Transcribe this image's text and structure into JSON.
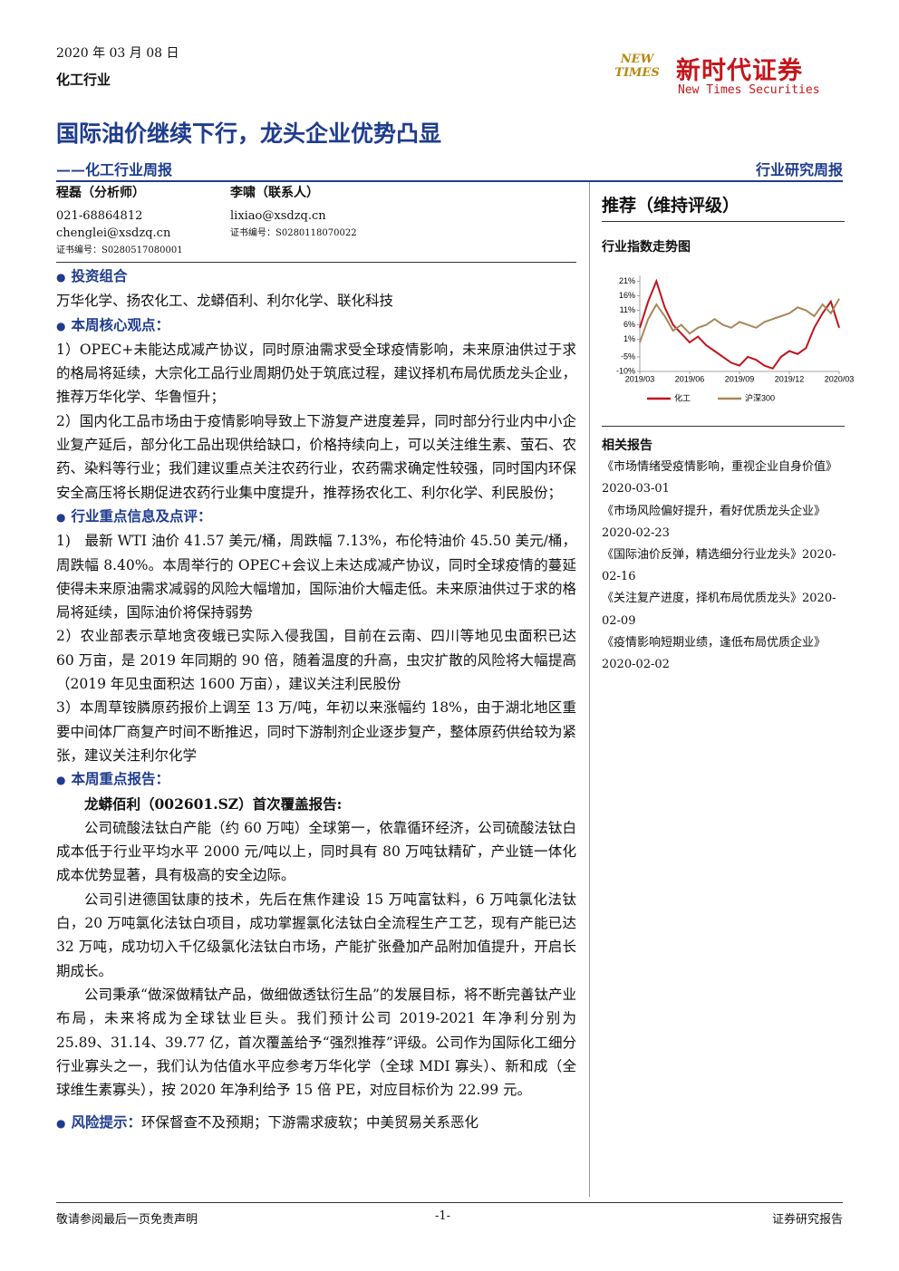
{
  "header": {
    "date": "2020 年 03 月 08 日",
    "industry": "化工行业",
    "logo_mark": [
      "NEW",
      "TIMES"
    ],
    "logo_cn": "新时代证券",
    "logo_en": "New Times Securities",
    "title": "国际油价继续下行，龙头企业优势凸显",
    "subtitle": "——化工行业周报",
    "report_type": "行业研究周报"
  },
  "analysts": [
    {
      "name": "程磊（分析师）",
      "phone": "021-68864812",
      "email": "chenglei@xsdzq.cn",
      "cert": "证书编号：S0280517080001"
    },
    {
      "name": "李啸（联系人）",
      "email": "lixiao@xsdzq.cn",
      "cert": "证书编号：S0280118070022"
    }
  ],
  "rating": "推荐（维持评级）",
  "chart_data": {
    "type": "line",
    "title": "行业指数走势图",
    "categories": [
      "2019/03",
      null,
      null,
      null,
      null,
      null,
      "2019/06",
      null,
      null,
      null,
      null,
      null,
      "2019/09",
      null,
      null,
      null,
      null,
      null,
      "2019/12",
      null,
      null,
      null,
      null,
      null,
      "2020/03"
    ],
    "series": [
      {
        "name": "化工",
        "color": "#c0141c",
        "values": [
          5,
          14,
          21,
          12,
          6,
          3,
          0,
          2,
          -1,
          -3,
          -5,
          -7,
          -8,
          -5,
          -6,
          -8,
          -9,
          -5,
          -3,
          -4,
          -2,
          5,
          10,
          14,
          5
        ]
      },
      {
        "name": "沪深300",
        "color": "#a8875a",
        "values": [
          0,
          8,
          13,
          9,
          4,
          6,
          3,
          5,
          6,
          8,
          6,
          5,
          7,
          6,
          5,
          7,
          8,
          9,
          10,
          12,
          11,
          9,
          13,
          10,
          15
        ]
      }
    ],
    "ylim": [
      -10,
      23
    ],
    "yticks": [
      {
        "value": 21,
        "label": "21%"
      },
      {
        "value": 16,
        "label": "16%"
      },
      {
        "value": 11,
        "label": "11%"
      },
      {
        "value": 6,
        "label": "6%"
      },
      {
        "value": 1,
        "label": "1%"
      },
      {
        "value": -5,
        "label": "-5%"
      },
      {
        "value": -10,
        "label": "-10%"
      }
    ]
  },
  "related": {
    "title": "相关报告",
    "items": [
      "《市场情绪受疫情影响，重视企业自身价值》2020-03-01",
      "《市场风险偏好提升，看好优质龙头企业》2020-02-23",
      "《国际油价反弹，精选细分行业龙头》2020-02-16",
      "《关注复产进度，择机布局优质龙头》2020-02-09",
      "《疫情影响短期业绩，逢低布局优质企业》2020-02-02"
    ]
  },
  "body": {
    "portfolio": {
      "heading": "投资组合",
      "text": "万华化学、扬农化工、龙蟒佰利、利尔化学、联化科技"
    },
    "views": {
      "heading": "本周核心观点：",
      "paragraphs": [
        "1）OPEC+未能达成减产协议，同时原油需求受全球疫情影响，未来原油供过于求的格局将延续，大宗化工品行业周期仍处于筑底过程，建议择机布局优质龙头企业，推荐万华化学、华鲁恒升；",
        "2）国内化工品市场由于疫情影响导致上下游复产进度差异，同时部分行业内中小企业复产延后，部分化工品出现供给缺口，价格持续向上，可以关注维生素、萤石、农药、染料等行业；我们建议重点关注农药行业，农药需求确定性较强，同时国内环保安全高压将长期促进农药行业集中度提升，推荐扬农化工、利尔化学、利民股份；"
      ]
    },
    "news": {
      "heading": "行业重点信息及点评：",
      "paragraphs": [
        "1)　最新 WTI 油价 41.57 美元/桶，周跌幅 7.13%，布伦特油价 45.50 美元/桶，周跌幅 8.40%。本周举行的 OPEC+会议上未达成减产协议，同时全球疫情的蔓延使得未来原油需求减弱的风险大幅增加，国际油价大幅走低。未来原油供过于求的格局将延续，国际油价将保持弱势",
        "2）农业部表示草地贪夜蛾已实际入侵我国，目前在云南、四川等地见虫面积已达 60 万亩，是 2019 年同期的 90 倍，随着温度的升高，虫灾扩散的风险将大幅提高（2019 年见虫面积达 1600 万亩），建议关注利民股份",
        "3）本周草铵膦原药报价上调至 13 万/吨，年初以来涨幅约 18%，由于湖北地区重要中间体厂商复产时间不断推迟，同时下游制剂企业逐步复产，整体原药供给较为紧张，建议关注利尔化学"
      ]
    },
    "focus": {
      "heading": "本周重点报告：",
      "subheading": "龙蟒佰利（002601.SZ）首次覆盖报告:",
      "paragraphs": [
        "公司硫酸法钛白产能（约 60 万吨）全球第一，依靠循环经济，公司硫酸法钛白成本低于行业平均水平 2000 元/吨以上，同时具有 80 万吨钛精矿，产业链一体化成本优势显著，具有极高的安全边际。",
        "公司引进德国钛康的技术，先后在焦作建设 15 万吨富钛料，6 万吨氯化法钛白，20 万吨氯化法钛白项目，成功掌握氯化法钛白全流程生产工艺，现有产能已达 32 万吨，成功切入千亿级氯化法钛白市场，产能扩张叠加产品附加值提升，开启长期成长。",
        "公司秉承“做深做精钛产品，做细做透钛衍生品”的发展目标，将不断完善钛产业布局，未来将成为全球钛业巨头。我们预计公司 2019-2021 年净利分别为 25.89、31.14、39.77 亿，首次覆盖给予“强烈推荐”评级。公司作为国际化工细分行业寡头之一，我们认为估值水平应参考万华化学（全球 MDI 寡头）、新和成（全球维生素寡头），按 2020 年净利给予 15 倍 PE，对应目标价为 22.99 元。"
      ]
    },
    "risk": {
      "heading": "风险提示：",
      "text": "环保督查不及预期；下游需求疲软；中美贸易关系恶化"
    }
  },
  "footer": {
    "left": "敬请参阅最后一页免责声明",
    "page": "-1-",
    "right": "证券研究报告"
  }
}
